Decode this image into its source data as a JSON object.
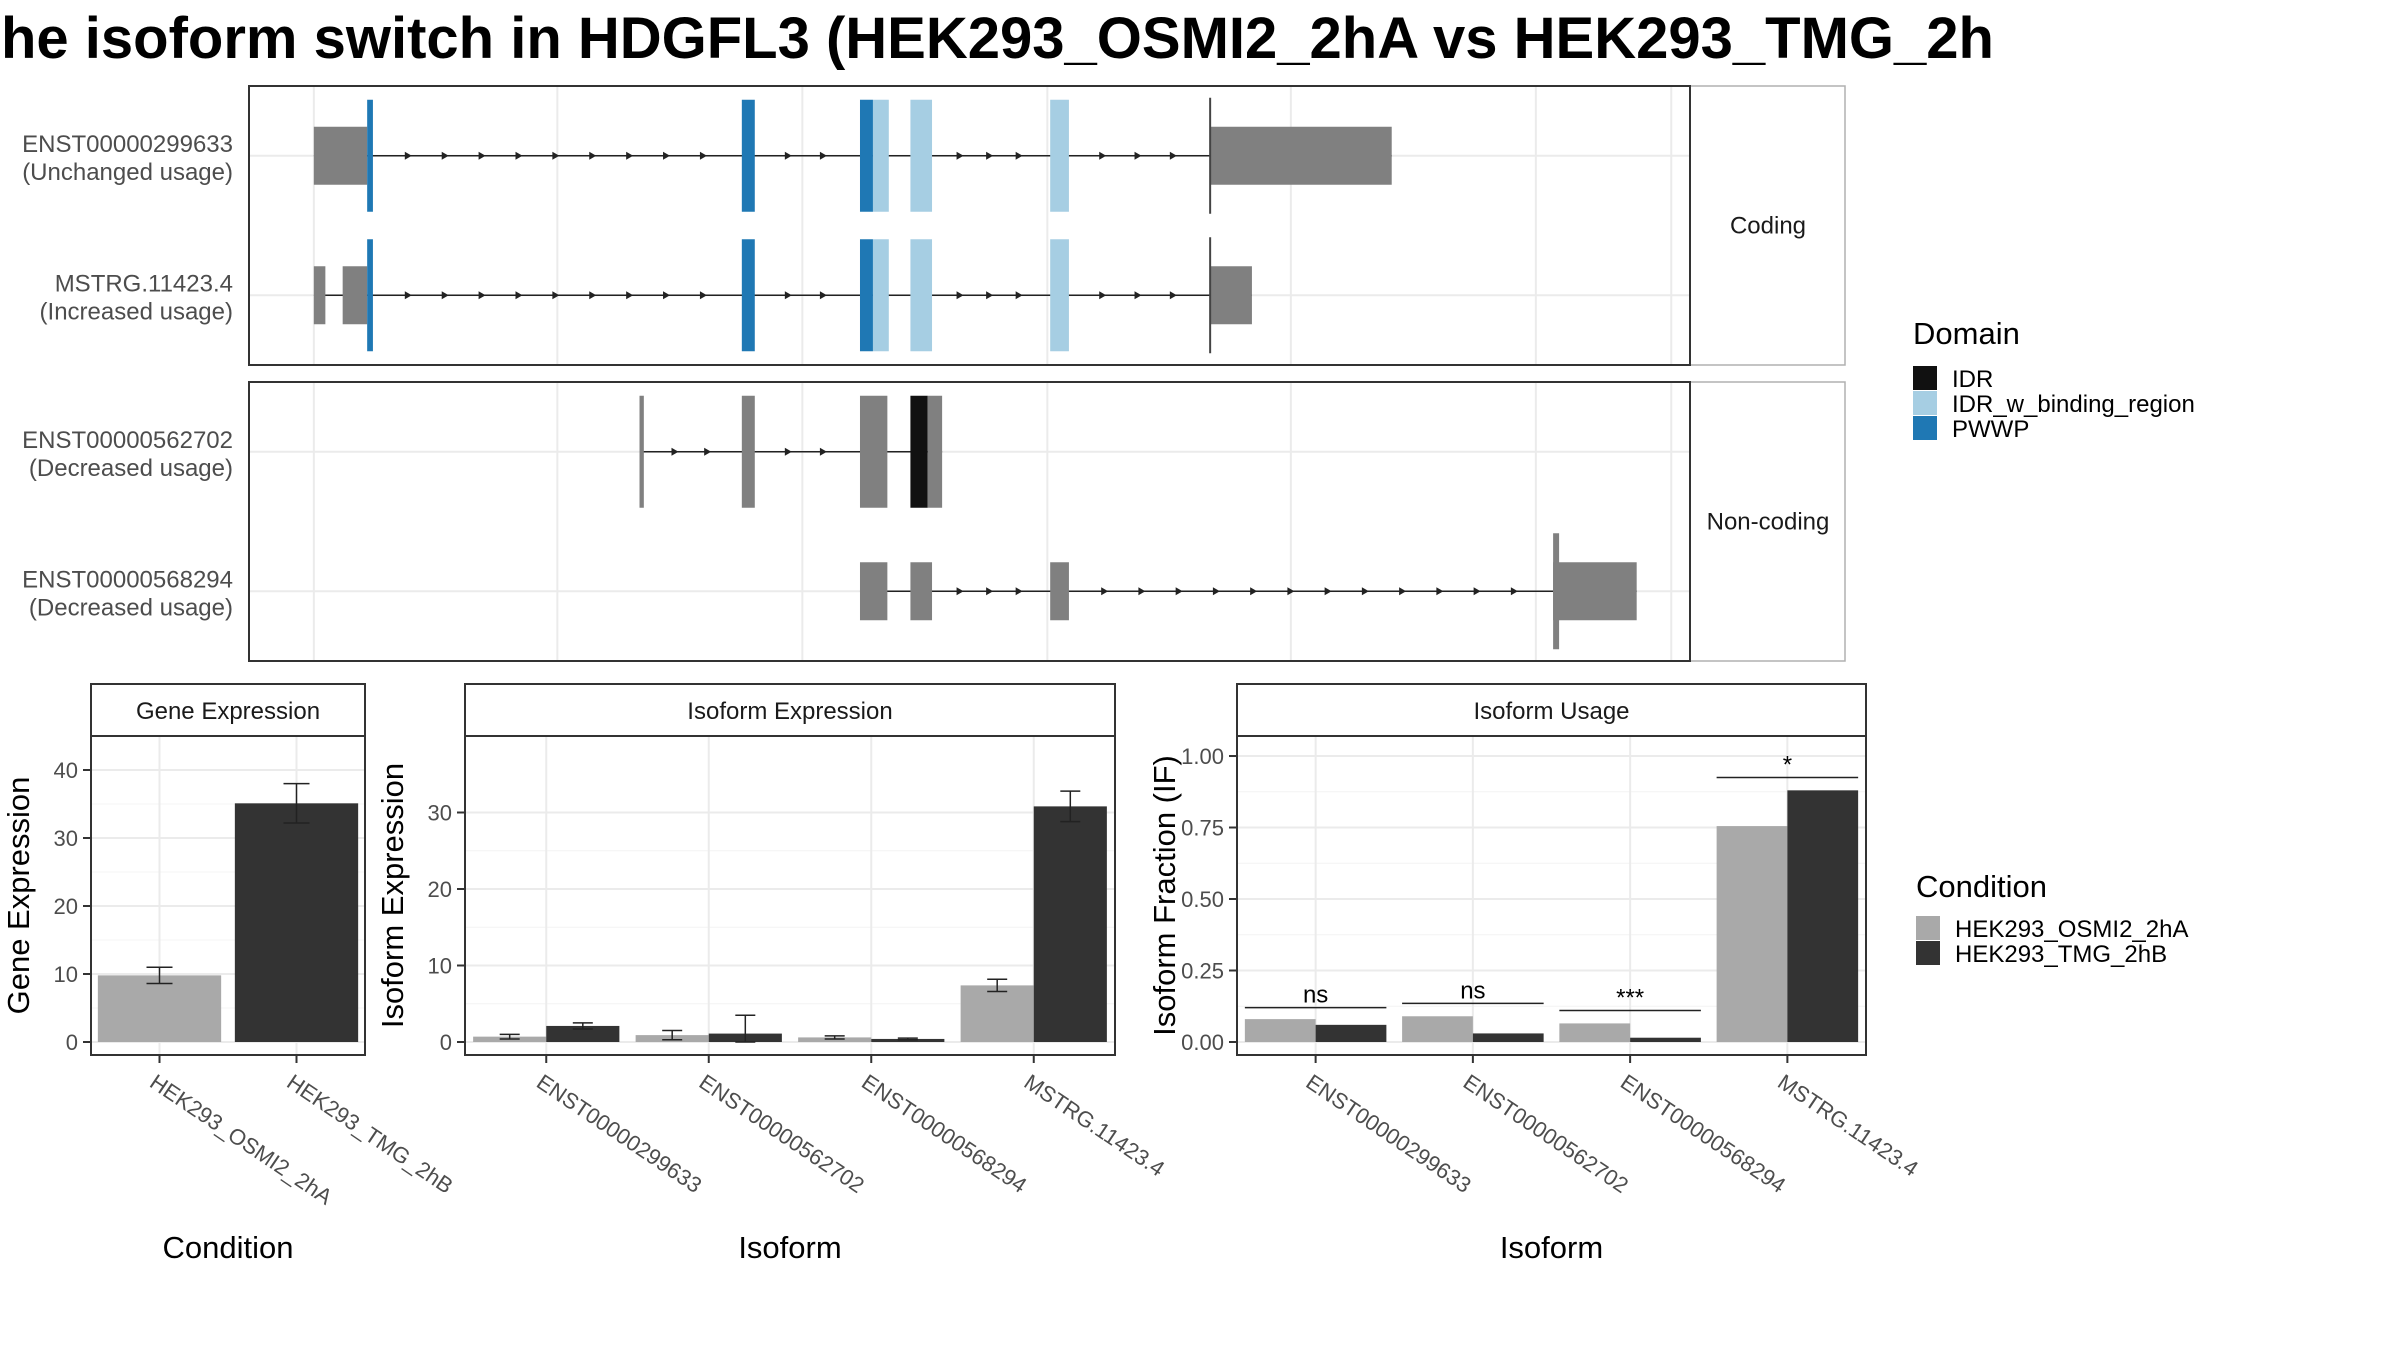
{
  "title": "he isoform switch in HDGFL3 (HEK293_OSMI2_2hA vs HEK293_TMG_2h",
  "colors": {
    "utr": "#808080",
    "IDR": "#111111",
    "IDR_w_binding_region": "#a6cee3",
    "PWWP": "#1f78b4",
    "HEK293_OSMI2_2hA": "#a9a9a9",
    "HEK293_TMG_2hB": "#333333"
  },
  "transcript_panel": {
    "xlim": [
      0,
      1000
    ],
    "facets": [
      "Coding",
      "Non-coding"
    ],
    "transcripts": [
      {
        "facet": "Coding",
        "label_line1": "ENST00000299633",
        "label_line2": "(Unchanged usage)",
        "exons": [
          {
            "start": 45,
            "end": 82,
            "kind": "utr"
          },
          {
            "start": 82,
            "end": 86,
            "kind": "PWWP"
          },
          {
            "start": 342,
            "end": 351,
            "kind": "PWWP"
          },
          {
            "start": 424,
            "end": 433,
            "kind": "PWWP"
          },
          {
            "start": 433,
            "end": 444,
            "kind": "IDR_w_binding_region"
          },
          {
            "start": 459,
            "end": 474,
            "kind": "IDR_w_binding_region"
          },
          {
            "start": 556,
            "end": 569,
            "kind": "IDR_w_binding_region"
          },
          {
            "start": 667,
            "end": 793,
            "kind": "utr"
          }
        ]
      },
      {
        "facet": "Coding",
        "label_line1": "MSTRG.11423.4",
        "label_line2": "(Increased usage)",
        "exons": [
          {
            "start": 45,
            "end": 53,
            "kind": "utr"
          },
          {
            "start": 65,
            "end": 82,
            "kind": "utr"
          },
          {
            "start": 82,
            "end": 86,
            "kind": "PWWP"
          },
          {
            "start": 342,
            "end": 351,
            "kind": "PWWP"
          },
          {
            "start": 424,
            "end": 433,
            "kind": "PWWP"
          },
          {
            "start": 433,
            "end": 444,
            "kind": "IDR_w_binding_region"
          },
          {
            "start": 459,
            "end": 474,
            "kind": "IDR_w_binding_region"
          },
          {
            "start": 556,
            "end": 569,
            "kind": "IDR_w_binding_region"
          },
          {
            "start": 667,
            "end": 696,
            "kind": "utr"
          }
        ]
      },
      {
        "facet": "Non-coding",
        "label_line1": "ENST00000562702",
        "label_line2": "(Decreased usage)",
        "exons": [
          {
            "start": 271,
            "end": 274,
            "kind": "utr"
          },
          {
            "start": 342,
            "end": 351,
            "kind": "utr"
          },
          {
            "start": 424,
            "end": 443,
            "kind": "utr"
          },
          {
            "start": 459,
            "end": 471,
            "kind": "IDR"
          },
          {
            "start": 471,
            "end": 481,
            "kind": "utr"
          }
        ]
      },
      {
        "facet": "Non-coding",
        "label_line1": "ENST00000568294",
        "label_line2": "(Decreased usage)",
        "exons": [
          {
            "start": 424,
            "end": 443,
            "kind": "utr"
          },
          {
            "start": 459,
            "end": 474,
            "kind": "utr"
          },
          {
            "start": 556,
            "end": 569,
            "kind": "utr"
          },
          {
            "start": 905,
            "end": 963,
            "kind": "utr"
          }
        ]
      }
    ]
  },
  "domain_legend": {
    "title": "Domain",
    "items": [
      "IDR",
      "IDR_w_binding_region",
      "PWWP"
    ]
  },
  "condition_legend": {
    "title": "Condition",
    "items": [
      "HEK293_OSMI2_2hA",
      "HEK293_TMG_2hB"
    ]
  },
  "chart_data": [
    {
      "type": "bar",
      "strip": "Gene Expression",
      "xlabel": "Condition",
      "ylabel": "Gene Expression",
      "ylim": [
        0,
        45
      ],
      "yticks": [
        0,
        10,
        20,
        30,
        40
      ],
      "categories": [
        "HEK293_OSMI2_2hA",
        "HEK293_TMG_2hB"
      ],
      "values": [
        9.8,
        35.1
      ],
      "errors": [
        1.2,
        2.9
      ]
    },
    {
      "type": "bar",
      "strip": "Isoform Expression",
      "xlabel": "Isoform",
      "ylabel": "Isoform Expression",
      "ylim": [
        0,
        40
      ],
      "yticks": [
        0,
        10,
        20,
        30
      ],
      "categories": [
        "ENST00000299633",
        "ENST00000562702",
        "ENST00000568294",
        "MSTRG.11423.4"
      ],
      "series": [
        {
          "name": "HEK293_OSMI2_2hA",
          "values": [
            0.7,
            0.9,
            0.6,
            7.4
          ],
          "errors": [
            0.3,
            0.6,
            0.2,
            0.8
          ]
        },
        {
          "name": "HEK293_TMG_2hB",
          "values": [
            2.1,
            1.1,
            0.4,
            30.8
          ],
          "errors": [
            0.4,
            2.4,
            0.1,
            2.0
          ]
        }
      ]
    },
    {
      "type": "bar",
      "strip": "Isoform Usage",
      "xlabel": "Isoform",
      "ylabel": "Isoform Fraction (IF)",
      "ylim": [
        0,
        1.07
      ],
      "yticks": [
        "0.00",
        "0.25",
        "0.50",
        "0.75",
        "1.00"
      ],
      "categories": [
        "ENST00000299633",
        "ENST00000562702",
        "ENST00000568294",
        "MSTRG.11423.4"
      ],
      "series": [
        {
          "name": "HEK293_OSMI2_2hA",
          "values": [
            0.08,
            0.09,
            0.065,
            0.755
          ]
        },
        {
          "name": "HEK293_TMG_2hB",
          "values": [
            0.06,
            0.03,
            0.015,
            0.88
          ]
        }
      ],
      "significance": [
        "ns",
        "ns",
        "***",
        "*"
      ],
      "significance_y": [
        0.12,
        0.135,
        0.11,
        0.925
      ]
    }
  ]
}
